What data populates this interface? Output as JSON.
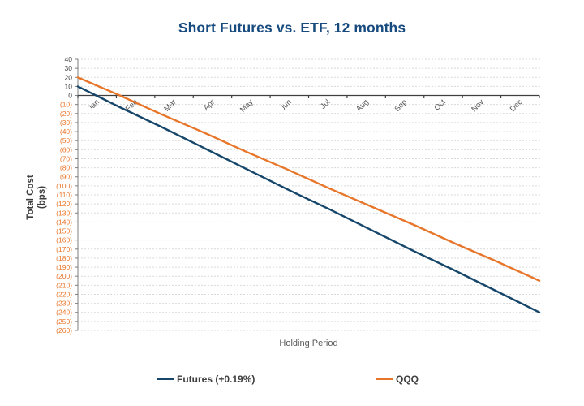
{
  "chart": {
    "title": "Short Futures vs. ETF, 12 months",
    "title_color": "#174a7e",
    "ylabel_line1": "Total Cost",
    "ylabel_line2": "(bps)",
    "xlabel": "Holding Period",
    "legend": [
      {
        "label": "Futures (+0.19%)",
        "color": "#16476b"
      },
      {
        "label": "QQQ",
        "color": "#e8762a"
      }
    ]
  },
  "chart_data": {
    "type": "line",
    "title": "Short Futures vs. ETF, 12 months",
    "xlabel": "Holding Period",
    "ylabel": "Total Cost (bps)",
    "categories": [
      "Jan",
      "Feb",
      "Mar",
      "Apr",
      "May",
      "Jun",
      "Jul",
      "Aug",
      "Sep",
      "Oct",
      "Nov",
      "Dec"
    ],
    "series": [
      {
        "name": "Futures (+0.19%)",
        "color": "#16476b",
        "values": [
          10,
          -13,
          -35,
          -58,
          -81,
          -104,
          -126,
          -149,
          -172,
          -194,
          -217,
          -240
        ]
      },
      {
        "name": "QQQ",
        "color": "#e8762a",
        "values": [
          20,
          0,
          -21,
          -41,
          -62,
          -82,
          -103,
          -123,
          -143,
          -164,
          -184,
          -205
        ]
      }
    ],
    "ylim": [
      -260,
      40
    ],
    "y_tick_step": 10,
    "y_ticks": [
      "40",
      "30",
      "20",
      "10",
      "0",
      "(10)",
      "(20)",
      "(30)",
      "(40)",
      "(50)",
      "(60)",
      "(70)",
      "(80)",
      "(90)",
      "(100)",
      "(110)",
      "(120)",
      "(130)",
      "(140)",
      "(150)",
      "(160)",
      "(170)",
      "(180)",
      "(190)",
      "(200)",
      "(210)",
      "(220)",
      "(230)",
      "(240)",
      "(250)",
      "(260)"
    ],
    "positive_label_color": "#404040",
    "negative_label_color": "#e8762a",
    "tick_label_color_x": "#595959",
    "gridline_color": "#d9d9d9",
    "x_axis_color": "#404040",
    "y_axis_color": "#7f7f7f",
    "grid": true,
    "legend_position": "bottom"
  }
}
